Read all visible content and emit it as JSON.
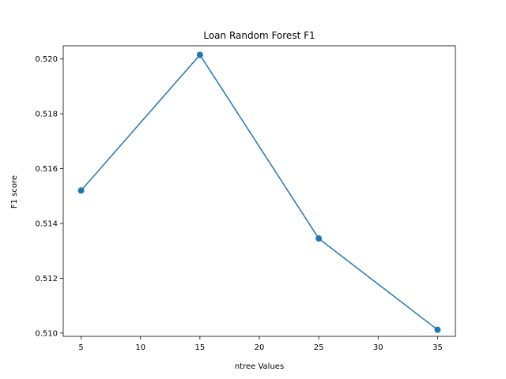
{
  "chart_data": {
    "type": "line",
    "title": "Loan Random Forest F1",
    "xlabel": "ntree Values",
    "ylabel": "F1 score",
    "x": [
      5,
      15,
      25,
      35
    ],
    "series": [
      {
        "values": [
          0.5152,
          0.52015,
          0.51345,
          0.51012
        ],
        "color": "#1f77b4",
        "marker": "circle"
      }
    ],
    "xlim": [
      3.5,
      36.5
    ],
    "ylim": [
      0.50988,
      0.52048
    ],
    "xticks": [
      5,
      10,
      15,
      20,
      25,
      30,
      35
    ],
    "xtick_labels": [
      "5",
      "10",
      "15",
      "20",
      "25",
      "30",
      "35"
    ],
    "yticks": [
      0.51,
      0.512,
      0.514,
      0.516,
      0.518,
      0.52
    ],
    "ytick_labels": [
      "0.510",
      "0.512",
      "0.514",
      "0.516",
      "0.518",
      "0.520"
    ],
    "grid": false,
    "legend": false
  }
}
